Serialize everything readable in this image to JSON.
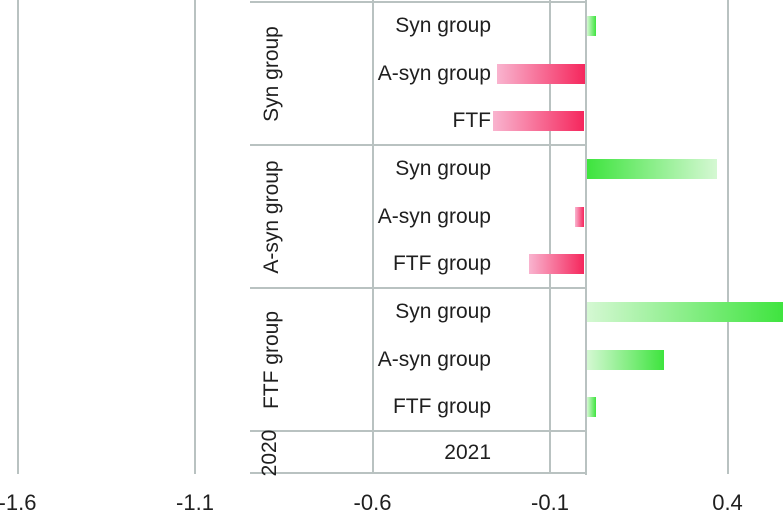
{
  "chart_data": {
    "type": "bar",
    "orientation": "horizontal",
    "title": "",
    "xlabel": "",
    "ylabel": "",
    "legend": null,
    "x_axis": {
      "tick_labels": [
        "-1.6",
        "-1.1",
        "-0.6",
        "-0.1",
        "0.4"
      ],
      "tick_values": [
        -1.6,
        -1.1,
        -0.6,
        -0.1,
        0.4
      ],
      "visible_range": [
        -1.65,
        0.56
      ],
      "grid": true,
      "zero_line": true
    },
    "groups": [
      {
        "outer_label": "Syn group",
        "rows": [
          {
            "label": "Syn group",
            "value": 0.03,
            "dark_side": "right"
          },
          {
            "label": "A-syn group",
            "value": -0.25,
            "dark_side": "right"
          },
          {
            "label": "FTF",
            "value": -0.26,
            "dark_side": "right"
          }
        ]
      },
      {
        "outer_label": "A-syn group",
        "rows": [
          {
            "label": "Syn group",
            "value": 0.37,
            "dark_side": "left"
          },
          {
            "label": "A-syn group",
            "value": -0.03,
            "dark_side": "right"
          },
          {
            "label": "FTF group",
            "value": -0.16,
            "dark_side": "right"
          }
        ]
      },
      {
        "outer_label": "FTF group",
        "rows": [
          {
            "label": "Syn group",
            "value": 0.56,
            "dark_side": "right",
            "clipped": true
          },
          {
            "label": "A-syn group",
            "value": 0.22,
            "dark_side": "right"
          },
          {
            "label": "FTF group",
            "value": 0.03,
            "dark_side": "right"
          }
        ]
      }
    ],
    "footer": {
      "outer_label": "2020",
      "inner_label": "2021"
    },
    "colors": {
      "positive_dark": "#3ee43e",
      "positive_light": "#d5f8d3",
      "negative_dark": "#f5275d",
      "negative_light": "#f9b4cf",
      "gridline": "#b9c2c1",
      "text": "#1f1f1f"
    }
  }
}
